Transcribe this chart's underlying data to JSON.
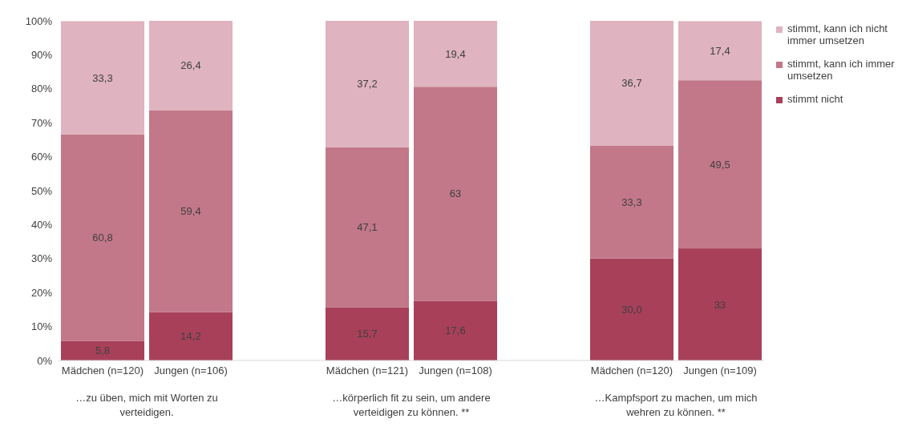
{
  "chart_data": {
    "type": "bar",
    "stacked": true,
    "categories": [
      "Mädchen (n=120)",
      "Jungen (n=106)",
      null,
      "Mädchen (n=121)",
      "Jungen (n=108)",
      null,
      "Mädchen (n=120)",
      "Jungen (n=109)"
    ],
    "series": [
      {
        "name": "stimmt nicht",
        "color": "#a8405a",
        "values": [
          5.8,
          14.2,
          null,
          15.7,
          17.6,
          null,
          30.0,
          33
        ],
        "value_labels": [
          "5,8",
          "14,2",
          null,
          "15,7",
          "17,6",
          null,
          "30,0",
          "33"
        ]
      },
      {
        "name": "stimmt, kann ich immer umsetzen",
        "color": "#c27889",
        "values": [
          60.8,
          59.4,
          null,
          47.1,
          63,
          null,
          33.3,
          49.5
        ],
        "value_labels": [
          "60,8",
          "59,4",
          null,
          "47,1",
          "63",
          null,
          "33,3",
          "49,5"
        ]
      },
      {
        "name": "stimmt, kann ich nicht immer umsetzen",
        "color": "#dfb3bf",
        "values": [
          33.3,
          26.4,
          null,
          37.2,
          19.4,
          null,
          36.7,
          17.4
        ],
        "value_labels": [
          "33,3",
          "26,4",
          null,
          "37,2",
          "19,4",
          null,
          "36,7",
          "17,4"
        ]
      }
    ],
    "ylim": [
      0,
      100
    ],
    "yticks": [
      {
        "value": 0,
        "label": "0%"
      },
      {
        "value": 10,
        "label": "10%"
      },
      {
        "value": 20,
        "label": "20%"
      },
      {
        "value": 30,
        "label": "30%"
      },
      {
        "value": 40,
        "label": "40%"
      },
      {
        "value": 50,
        "label": "50%"
      },
      {
        "value": 60,
        "label": "60%"
      },
      {
        "value": 70,
        "label": "70%"
      },
      {
        "value": 80,
        "label": "80%"
      },
      {
        "value": 90,
        "label": "90%"
      },
      {
        "value": 100,
        "label": "100%"
      }
    ],
    "legend": "right",
    "annotations": [
      "…zu üben, mich mit Worten zu verteidigen.",
      "…körperlich fit zu sein, um andere verteidigen zu können. **",
      "…Kampfsport zu machen, um mich wehren zu können. **"
    ]
  }
}
